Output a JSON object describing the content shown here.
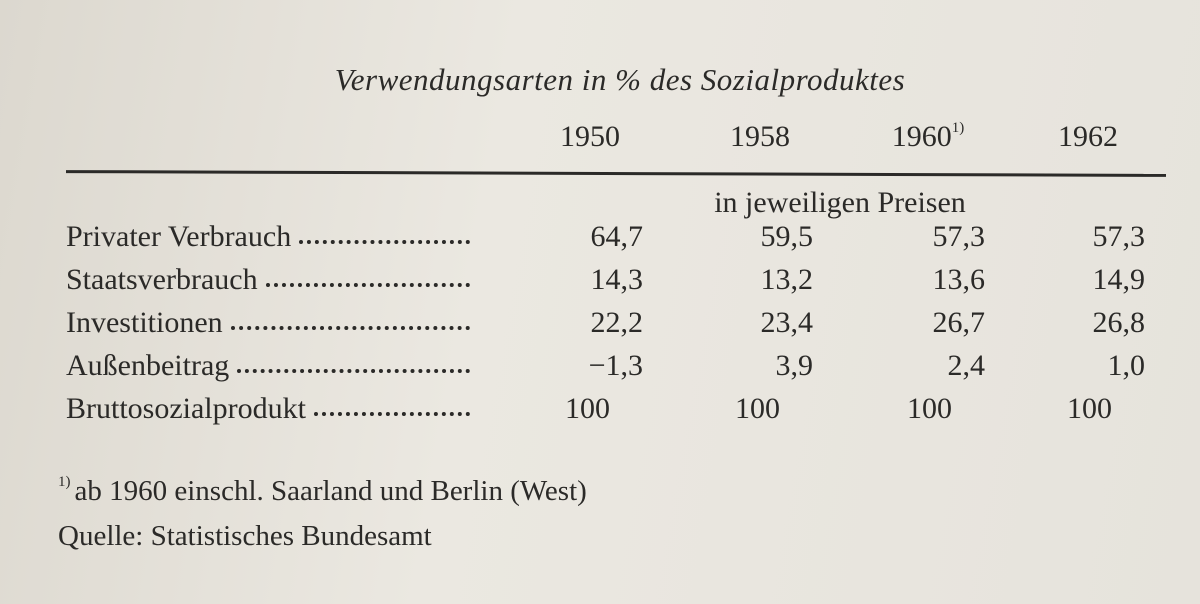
{
  "title": "Verwendungsarten in % des Sozialproduktes",
  "table": {
    "columns": [
      {
        "label": "1950"
      },
      {
        "label": "1958"
      },
      {
        "label": "1960",
        "note": "1)"
      },
      {
        "label": "1962"
      }
    ],
    "subheader": "in jeweiligen Preisen",
    "rows": [
      {
        "label": "Privater Verbrauch",
        "values": [
          "64,7",
          "59,5",
          "57,3",
          "57,3"
        ]
      },
      {
        "label": "Staatsverbrauch",
        "values": [
          "14,3",
          "13,2",
          "13,6",
          "14,9"
        ]
      },
      {
        "label": "Investitionen",
        "values": [
          "22,2",
          "23,4",
          "26,7",
          "26,8"
        ]
      },
      {
        "label": "Außenbeitrag",
        "values": [
          "−1,3",
          "3,9",
          "2,4",
          "1,0"
        ]
      },
      {
        "label": "Bruttosozialprodukt",
        "values": [
          "100",
          "100",
          "100",
          "100"
        ]
      }
    ]
  },
  "footnote": {
    "marker": "1)",
    "text": "ab 1960 einschl. Saarland und Berlin (West)"
  },
  "source": "Quelle: Statistisches Bundesamt"
}
